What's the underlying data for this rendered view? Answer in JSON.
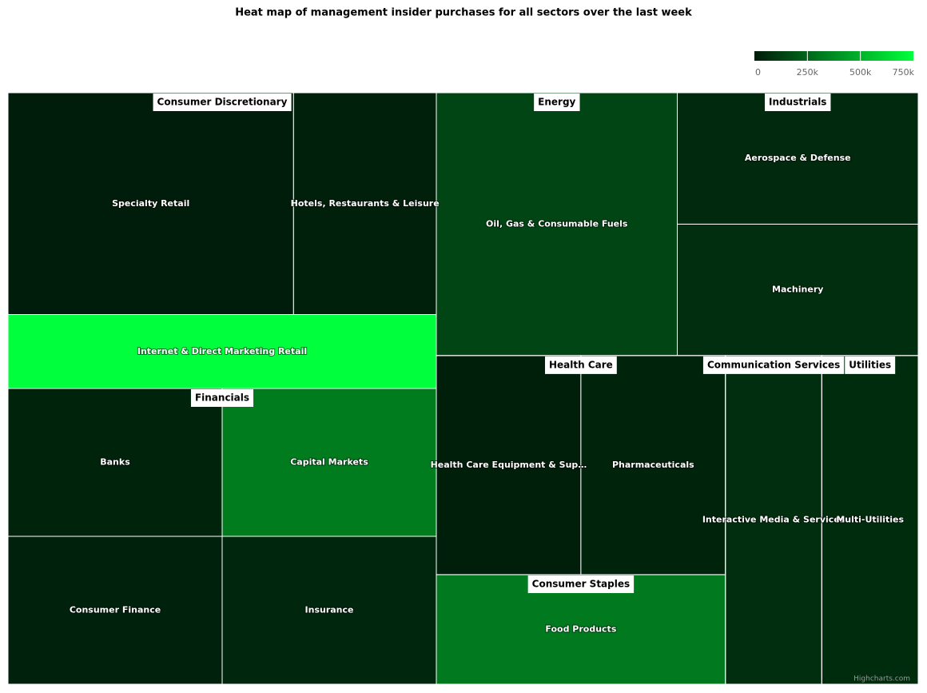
{
  "chart_data": {
    "type": "treemap",
    "title": "Heat map of management insider purchases for all sectors over the last week",
    "color_axis": {
      "min_color": "#001a0a",
      "max_color": "#00ff3c",
      "lim": [
        0,
        750000
      ],
      "ticks": [
        0,
        {
          "value": 250000,
          "label": "250k"
        },
        {
          "value": 500000,
          "label": "500k"
        },
        {
          "value": 750000,
          "label": "750k"
        }
      ]
    },
    "groups": [
      {
        "name": "Consumer Discretionary",
        "children": [
          {
            "name": "Specialty Retail",
            "size": 2,
            "value": 10000
          },
          {
            "name": "Hotels, Restaurants & Leisure",
            "size": 1,
            "value": 20000
          },
          {
            "name": "Internet & Direct Marketing Retail",
            "size": 1,
            "value": 750000
          }
        ]
      },
      {
        "name": "Financials",
        "children": [
          {
            "name": "Banks",
            "size": 1,
            "value": 30000
          },
          {
            "name": "Capital Markets",
            "size": 1,
            "value": 320000
          },
          {
            "name": "Consumer Finance",
            "size": 1,
            "value": 25000
          },
          {
            "name": "Insurance",
            "size": 1,
            "value": 40000
          }
        ]
      },
      {
        "name": "Energy",
        "children": [
          {
            "name": "Oil, Gas & Consumable Fuels",
            "size": 2,
            "value": 140000
          }
        ]
      },
      {
        "name": "Industrials",
        "children": [
          {
            "name": "Aerospace & Defense",
            "size": 1,
            "value": 50000
          },
          {
            "name": "Machinery",
            "size": 1,
            "value": 65000
          }
        ]
      },
      {
        "name": "Health Care",
        "children": [
          {
            "name": "Health Care Equipment & Sup…",
            "size": 1,
            "value": 15000
          },
          {
            "name": "Pharmaceuticals",
            "size": 1,
            "value": 30000
          }
        ]
      },
      {
        "name": "Consumer Staples",
        "children": [
          {
            "name": "Food Products",
            "size": 1,
            "value": 310000
          }
        ]
      },
      {
        "name": "Communication Services",
        "children": [
          {
            "name": "Interactive Media & Services",
            "size": 1,
            "value": 65000
          }
        ]
      },
      {
        "name": "Utilities",
        "children": [
          {
            "name": "Multi-Utilities",
            "size": 1,
            "value": 60000
          }
        ]
      }
    ],
    "credits": "Highcharts.com"
  }
}
